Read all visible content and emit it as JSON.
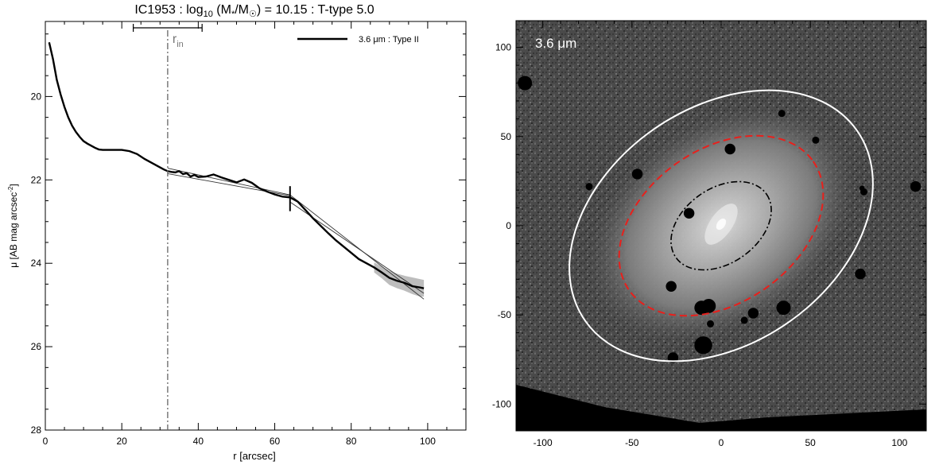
{
  "chart_data": [
    {
      "type": "line",
      "title_main": "IC1953 : log",
      "title_sub": "10",
      "title_rest": " (M",
      "title_star": "*",
      "title_slash": "/M",
      "title_sun": "☉",
      "title_tail": ") = 10.15 : T-type 5.0",
      "xlabel": "r [arcsec]",
      "ylabel_main": "μ [AB mag arcsec",
      "ylabel_sup": "-2",
      "ylabel_end": "]",
      "xlim": [
        0,
        110
      ],
      "ylim": [
        28,
        18.2
      ],
      "ylim_note": "inverted",
      "xticks": [
        0,
        20,
        40,
        60,
        80,
        100
      ],
      "yticks": [
        20,
        22,
        24,
        26,
        28
      ],
      "legend": {
        "label": "3.6 μm : Type II",
        "position": "top-right"
      },
      "r_in": {
        "x": 32,
        "label_main": "r",
        "label_sub": "in",
        "error_range": [
          23,
          41
        ]
      },
      "break": {
        "x": 64,
        "y": 22.45,
        "half_height": 0.3
      },
      "fit_lines": [
        {
          "x": [
            32,
            64
          ],
          "y": [
            21.72,
            22.36
          ]
        },
        {
          "x": [
            32,
            64
          ],
          "y": [
            21.85,
            22.38
          ]
        },
        {
          "x": [
            64,
            99
          ],
          "y": [
            22.36,
            24.86
          ]
        },
        {
          "x": [
            64,
            99
          ],
          "y": [
            22.53,
            24.72
          ]
        }
      ],
      "series": [
        {
          "name": "3.6 μm : Type II",
          "x": [
            1,
            2,
            3,
            4,
            5,
            6,
            7,
            8,
            9,
            10,
            11,
            12,
            13,
            14,
            15,
            16,
            18,
            20,
            22,
            24,
            26,
            28,
            30,
            31,
            32,
            33,
            34,
            35,
            36,
            37,
            38,
            39,
            40,
            42,
            44,
            46,
            48,
            50,
            52,
            54,
            56,
            58,
            60,
            62,
            64,
            66,
            68,
            70,
            72,
            74,
            76,
            78,
            80,
            82,
            84,
            86,
            88,
            90,
            92,
            94,
            96,
            98,
            99
          ],
          "y": [
            18.7,
            19.1,
            19.6,
            19.95,
            20.25,
            20.5,
            20.7,
            20.85,
            20.97,
            21.07,
            21.13,
            21.18,
            21.23,
            21.27,
            21.28,
            21.28,
            21.28,
            21.28,
            21.31,
            21.38,
            21.5,
            21.6,
            21.7,
            21.75,
            21.79,
            21.81,
            21.82,
            21.79,
            21.86,
            21.84,
            21.92,
            21.88,
            21.93,
            21.92,
            21.87,
            21.94,
            22.0,
            22.06,
            21.99,
            22.07,
            22.2,
            22.28,
            22.35,
            22.4,
            22.42,
            22.52,
            22.72,
            22.92,
            23.1,
            23.28,
            23.45,
            23.6,
            23.75,
            23.9,
            24.0,
            24.1,
            24.22,
            24.35,
            24.42,
            24.47,
            24.55,
            24.58,
            24.6
          ]
        }
      ],
      "uncertainty_band": {
        "x": [
          86,
          88,
          90,
          92,
          94,
          96,
          98,
          99
        ],
        "y_low": [
          23.98,
          24.08,
          24.18,
          24.25,
          24.3,
          24.34,
          24.38,
          24.4
        ],
        "y_high": [
          24.22,
          24.36,
          24.52,
          24.6,
          24.66,
          24.74,
          24.8,
          24.8
        ]
      }
    },
    {
      "type": "heatmap",
      "band_label": "3.6 μm",
      "xlim": [
        -115,
        115
      ],
      "ylim": [
        -115,
        115
      ],
      "xticks": [
        -100,
        -50,
        0,
        50,
        100
      ],
      "yticks": [
        -100,
        -50,
        0,
        50,
        100
      ],
      "ellipses": [
        {
          "role": "outer",
          "cx": 0,
          "cy": 0,
          "rx": 93,
          "ry": 66,
          "angle_deg": 35,
          "color": "#ffffff",
          "style": "solid"
        },
        {
          "role": "break",
          "cx": 0,
          "cy": 0,
          "rx": 63,
          "ry": 43,
          "angle_deg": 35,
          "color": "#e8201c",
          "style": "dashed"
        },
        {
          "role": "inner",
          "cx": 0,
          "cy": 0,
          "rx": 31,
          "ry": 21,
          "angle_deg": 35,
          "color": "#000000",
          "style": "dashdot"
        }
      ]
    }
  ]
}
